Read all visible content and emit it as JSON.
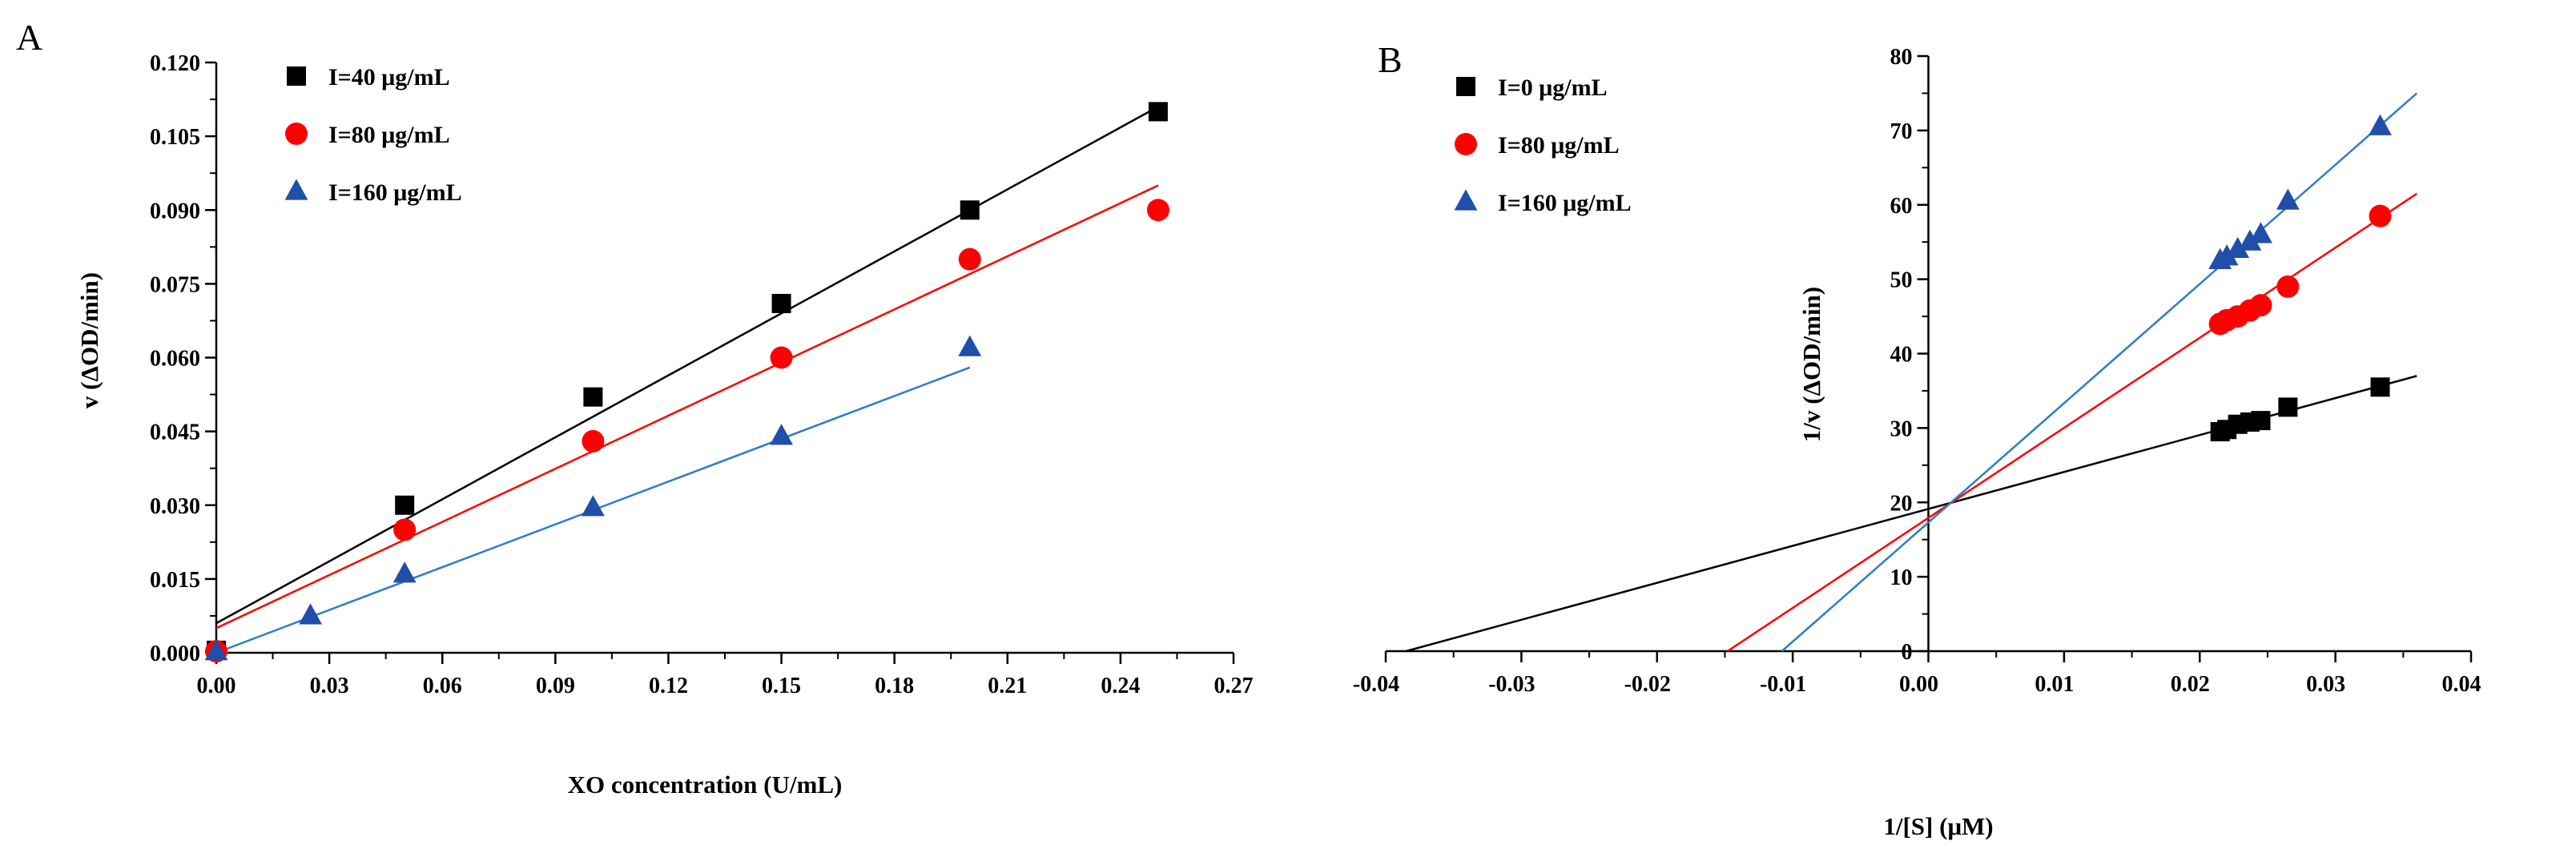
{
  "colors": {
    "black": "#000000",
    "red": "#ff0000",
    "blue": "#1f4fa8",
    "blue_line": "#2f7cc4"
  },
  "chart_data": [
    {
      "type": "scatter",
      "panel": "A",
      "xlabel": "XO concentration (U/mL)",
      "ylabel": "v (ΔOD/min)",
      "xlim": [
        0,
        0.27
      ],
      "ylim": [
        0,
        0.12
      ],
      "xticks": [
        "0.00",
        "0.03",
        "0.06",
        "0.09",
        "0.12",
        "0.15",
        "0.18",
        "0.21",
        "0.24",
        "0.27"
      ],
      "yticks": [
        "0.000",
        "0.015",
        "0.030",
        "0.045",
        "0.060",
        "0.075",
        "0.090",
        "0.105",
        "0.120"
      ],
      "legend_position": "top-left",
      "series": [
        {
          "name": "I=40 μg/mL",
          "marker": "square",
          "color": "#000000",
          "x": [
            0,
            0.05,
            0.1,
            0.15,
            0.2,
            0.25
          ],
          "y": [
            0.0005,
            0.03,
            0.052,
            0.071,
            0.09,
            0.11
          ],
          "fit": [
            [
              0,
              0.006
            ],
            [
              0.25,
              0.111
            ]
          ]
        },
        {
          "name": "I=80 μg/mL",
          "marker": "circle",
          "color": "#ff0000",
          "x": [
            0,
            0.05,
            0.1,
            0.15,
            0.2,
            0.25
          ],
          "y": [
            0.0003,
            0.025,
            0.043,
            0.06,
            0.08,
            0.09
          ],
          "fit": [
            [
              0,
              0.005
            ],
            [
              0.25,
              0.095
            ]
          ]
        },
        {
          "name": "I=160 μg/mL",
          "marker": "triangle",
          "color": "#1f4fa8",
          "x": [
            0,
            0.025,
            0.05,
            0.1,
            0.15,
            0.2
          ],
          "y": [
            0.0002,
            0.0075,
            0.016,
            0.0295,
            0.044,
            0.062
          ],
          "fit": [
            [
              0,
              0.0
            ],
            [
              0.2,
              0.058
            ]
          ]
        }
      ]
    },
    {
      "type": "scatter",
      "panel": "B",
      "xlabel": "1/[S] (μM)",
      "ylabel": "1/v (ΔOD/min)",
      "xlim": [
        -0.04,
        0.04
      ],
      "ylim": [
        0,
        80
      ],
      "xticks": [
        "-0.04",
        "-0.03",
        "-0.02",
        "-0.01",
        "0.00",
        "0.01",
        "0.02",
        "0.03",
        "0.04"
      ],
      "yticks": [
        "0",
        "10",
        "20",
        "30",
        "40",
        "50",
        "60",
        "70",
        "80"
      ],
      "legend_position": "top-left",
      "series": [
        {
          "name": "I=0 μg/mL",
          "marker": "square",
          "color": "#000000",
          "x": [
            0.0215,
            0.022,
            0.0228,
            0.0237,
            0.0245,
            0.0265,
            0.0333
          ],
          "y": [
            29.5,
            29.8,
            30.5,
            30.8,
            31.0,
            32.8,
            35.5
          ],
          "fit": [
            [
              -0.0385,
              0
            ],
            [
              0.036,
              37.0
            ]
          ]
        },
        {
          "name": "I=80 μg/mL",
          "marker": "circle",
          "color": "#ff0000",
          "x": [
            0.0215,
            0.022,
            0.0228,
            0.0237,
            0.0245,
            0.0265,
            0.0333
          ],
          "y": [
            44.0,
            44.5,
            45.0,
            45.8,
            46.5,
            49.0,
            58.5
          ],
          "fit": [
            [
              -0.0148,
              0
            ],
            [
              0.036,
              61.5
            ]
          ]
        },
        {
          "name": "I=160 μg/mL",
          "marker": "triangle",
          "color": "#1f4fa8",
          "x": [
            0.0215,
            0.022,
            0.0228,
            0.0237,
            0.0245,
            0.0265,
            0.0333
          ],
          "y": [
            52.5,
            53.0,
            54.0,
            55.0,
            56.0,
            60.5,
            70.5
          ],
          "fit": [
            [
              -0.0108,
              0
            ],
            [
              0.036,
              75.0
            ]
          ]
        }
      ]
    }
  ]
}
